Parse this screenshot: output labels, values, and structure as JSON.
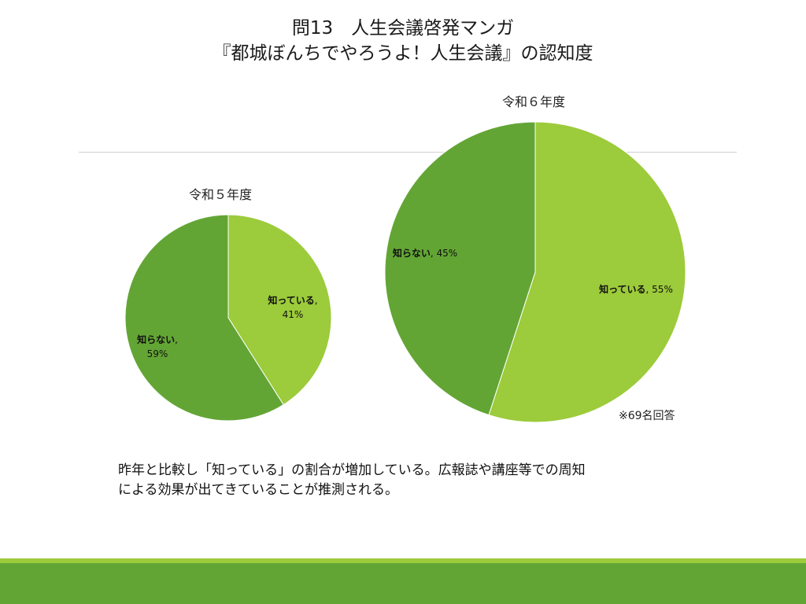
{
  "title": {
    "line1": "問13　人生会議啓発マンガ",
    "line2": "『都城ぼんちでやろうよ！人生会議』の認知度"
  },
  "colors": {
    "light_green": "#9ccb3b",
    "dark_green": "#63a535",
    "footer_line": "#9ccb3b",
    "footer_bar": "#63a535"
  },
  "chart_data": [
    {
      "type": "pie",
      "title": "令和５年度",
      "slices": [
        {
          "label": "知っている",
          "value": 41,
          "display": "41%",
          "color": "#9ccb3b"
        },
        {
          "label": "知らない",
          "value": 59,
          "display": "59%",
          "color": "#63a535"
        }
      ]
    },
    {
      "type": "pie",
      "title": "令和６年度",
      "slices": [
        {
          "label": "知っている",
          "value": 55,
          "display": "55%",
          "color": "#9ccb3b"
        },
        {
          "label": "知らない",
          "value": 45,
          "display": "45%",
          "color": "#63a535"
        }
      ]
    }
  ],
  "note": "※69名回答",
  "comment": {
    "line1": "昨年と比較し「知っている」の割合が増加している。広報誌や講座等での周知",
    "line2": "による効果が出てきていることが推測される。"
  }
}
